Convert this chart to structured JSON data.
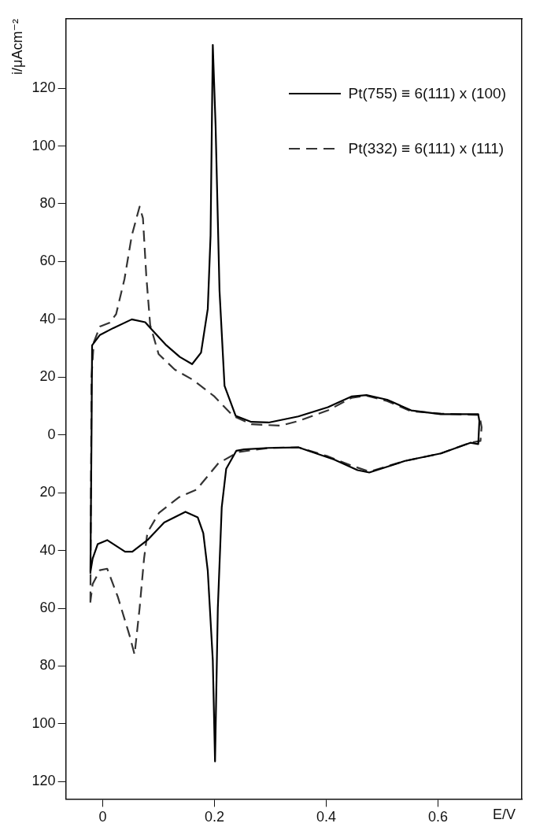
{
  "chart_data": {
    "type": "line",
    "xlabel": "E/V",
    "ylabel": "i/μAcm⁻²",
    "xlim": [
      -0.066,
      0.75
    ],
    "ylim": [
      -126,
      144
    ],
    "xticks": [
      0,
      0.2,
      0.4,
      0.6
    ],
    "yticks": [
      {
        "value": -120,
        "label": "120"
      },
      {
        "value": -100,
        "label": "100"
      },
      {
        "value": -80,
        "label": "80"
      },
      {
        "value": -60,
        "label": "60"
      },
      {
        "value": -40,
        "label": "40"
      },
      {
        "value": -20,
        "label": "20"
      },
      0,
      20,
      40,
      60,
      80,
      100,
      120
    ],
    "grid": false,
    "legend": "top right",
    "marker": "none",
    "series": [
      {
        "name": "Pt(755) ≡ 6(111) x (100)",
        "color": "#000000",
        "line_style": "solid",
        "x": [
          -0.022,
          -0.02,
          -0.019,
          -0.005,
          0.019,
          0.052,
          0.076,
          0.088,
          0.114,
          0.138,
          0.16,
          0.176,
          0.188,
          0.193,
          0.197,
          0.202,
          0.209,
          0.218,
          0.238,
          0.266,
          0.297,
          0.35,
          0.403,
          0.445,
          0.472,
          0.509,
          0.552,
          0.605,
          0.672,
          0.674,
          0.672,
          0.658,
          0.605,
          0.541,
          0.477,
          0.456,
          0.414,
          0.35,
          0.297,
          0.253,
          0.239,
          0.221,
          0.213,
          0.206,
          0.201,
          0.197,
          0.188,
          0.18,
          0.17,
          0.148,
          0.11,
          0.08,
          0.053,
          0.04,
          0.008,
          -0.009,
          -0.018,
          -0.022
        ],
        "values": [
          -48,
          0,
          31,
          34.6,
          37,
          40,
          39,
          36.4,
          31,
          27,
          24.5,
          28.5,
          43.6,
          69,
          135,
          107,
          50,
          17,
          6.6,
          4.5,
          4.3,
          6.4,
          9.6,
          13.3,
          13.8,
          12.2,
          8.5,
          7.2,
          7.2,
          4.8,
          -3.2,
          -2.7,
          -6.4,
          -9,
          -13,
          -12.2,
          -8.5,
          -4.3,
          -4.5,
          -5,
          -5.5,
          -11.7,
          -25,
          -60,
          -113,
          -78,
          -47,
          -34,
          -28.5,
          -26.6,
          -30.3,
          -36.4,
          -40.4,
          -40.4,
          -36.4,
          -37.8,
          -42.8,
          -47.5
        ]
      },
      {
        "name": "Pt(332) ≡ 6(111) x (111)",
        "color": "#333333",
        "line_style": "dashed",
        "x": [
          -0.022,
          -0.02,
          -0.016,
          -0.005,
          0.012,
          0.024,
          0.039,
          0.052,
          0.066,
          0.072,
          0.078,
          0.085,
          0.1,
          0.129,
          0.162,
          0.2,
          0.233,
          0.266,
          0.318,
          0.35,
          0.403,
          0.445,
          0.472,
          0.509,
          0.552,
          0.605,
          0.674,
          0.678,
          0.676,
          0.658,
          0.605,
          0.541,
          0.477,
          0.445,
          0.403,
          0.35,
          0.297,
          0.243,
          0.207,
          0.168,
          0.137,
          0.101,
          0.08,
          0.074,
          0.066,
          0.057,
          0.048,
          0.027,
          0.008,
          -0.005,
          -0.018,
          -0.022
        ],
        "values": [
          -58,
          20,
          32,
          37.5,
          38.8,
          41.8,
          54,
          69,
          79,
          75,
          55,
          38,
          28,
          22.6,
          19,
          13.3,
          6.6,
          3.7,
          3.2,
          4.8,
          8.5,
          12.8,
          13.6,
          11.7,
          8.2,
          7.4,
          6.9,
          2.7,
          -2.1,
          -2.7,
          -6.4,
          -9,
          -12.7,
          -10.6,
          -7.4,
          -4.3,
          -4.5,
          -5.9,
          -9.8,
          -18.9,
          -21.5,
          -26.9,
          -33.8,
          -42.8,
          -60,
          -76,
          -69.4,
          -56,
          -46.3,
          -46.8,
          -51.6,
          -57.7
        ]
      }
    ]
  }
}
